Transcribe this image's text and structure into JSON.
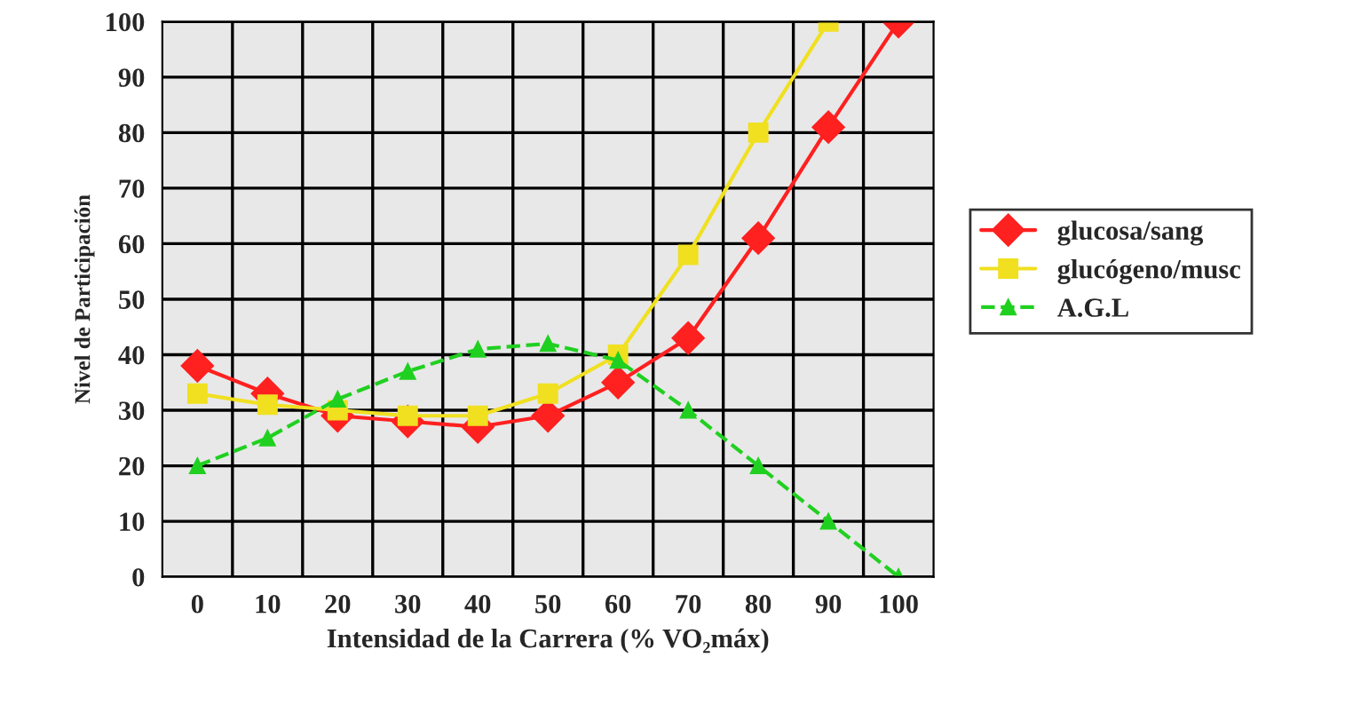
{
  "chart_data": {
    "type": "line",
    "xlabel": "Intensidad de la Carrera (% VO₂máx)",
    "ylabel": "Nivel de Participación",
    "categories": [
      "0",
      "10",
      "20",
      "30",
      "40",
      "50",
      "60",
      "70",
      "80",
      "90",
      "100"
    ],
    "series": [
      {
        "name": "glucosa/sang",
        "color": "#ff2020",
        "marker": "diamond",
        "values": [
          38,
          33,
          29,
          28,
          27,
          29,
          35,
          43,
          61,
          81,
          100
        ]
      },
      {
        "name": "glucógeno/musc",
        "color": "#f0e020",
        "marker": "square",
        "values": [
          33,
          31,
          30,
          29,
          29,
          33,
          40,
          58,
          80,
          100,
          null
        ]
      },
      {
        "name": "A.G.L",
        "color": "#20d020",
        "marker": "triangle",
        "line_style": "dashed",
        "values": [
          20,
          25,
          32,
          37,
          41,
          42,
          39,
          30,
          20,
          10,
          0
        ]
      }
    ],
    "ylim": [
      0,
      100
    ],
    "yticks": [
      0,
      10,
      20,
      30,
      40,
      50,
      60,
      70,
      80,
      90,
      100
    ],
    "grid": true,
    "legend": "right"
  }
}
